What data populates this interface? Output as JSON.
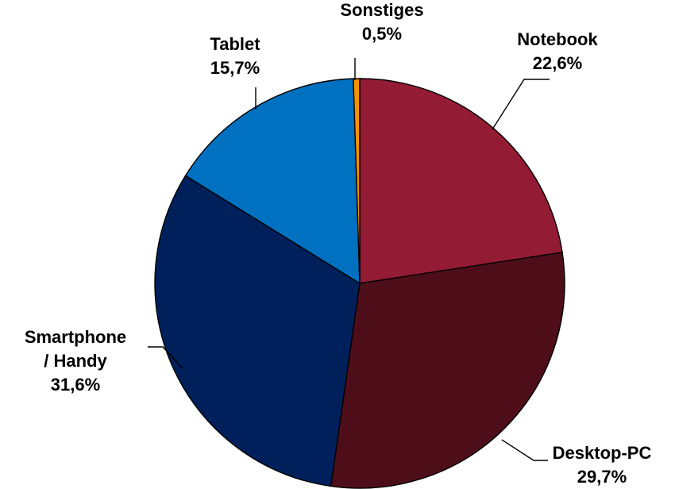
{
  "chart_data": {
    "type": "pie",
    "title": "",
    "start_angle_deg": 0,
    "direction": "clockwise",
    "slices": [
      {
        "category": "Notebook",
        "value": 22.6,
        "label": "22,6%",
        "name_lines": [
          "Notebook"
        ],
        "color": "#941B34"
      },
      {
        "category": "Desktop-PC",
        "value": 29.7,
        "label": "29,7%",
        "name_lines": [
          "Desktop-PC"
        ],
        "color": "#4E0E19"
      },
      {
        "category": "Smartphone / Handy",
        "value": 31.6,
        "label": "31,6%",
        "name_lines": [
          "Smartphone",
          "/ Handy"
        ],
        "color": "#00205C"
      },
      {
        "category": "Tablet",
        "value": 15.7,
        "label": "15,7%",
        "name_lines": [
          "Tablet"
        ],
        "color": "#0070C0"
      },
      {
        "category": "Sonstiges",
        "value": 0.5,
        "label": "0,5%",
        "name_lines": [
          "Sonstiges"
        ],
        "color": "#F39200"
      }
    ]
  }
}
